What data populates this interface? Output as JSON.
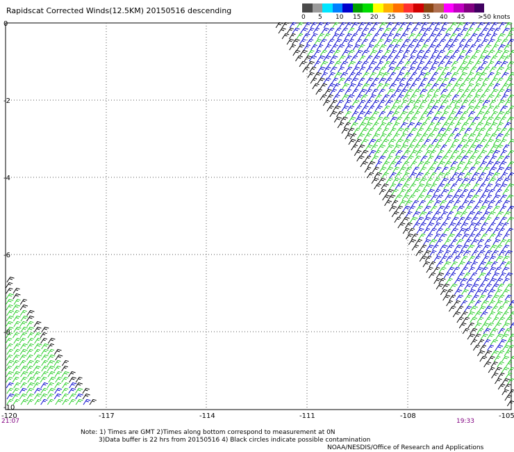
{
  "title": "Rapidscat Corrected Winds(12.5KM) 20150516 descending",
  "legend": {
    "colors": [
      "#4a4a4a",
      "#9a9a9a",
      "#00e5ff",
      "#0080ff",
      "#0000cc",
      "#00a000",
      "#00dd00",
      "#ffff00",
      "#ffb000",
      "#ff7000",
      "#ff3030",
      "#d00000",
      "#8b4513",
      "#b07050",
      "#ff00ff",
      "#c000c0",
      "#800080",
      "#400060"
    ],
    "labels": [
      "0",
      "5",
      "10",
      "15",
      "20",
      "25",
      "30",
      "35",
      "40",
      "45",
      ">50 knots"
    ]
  },
  "axes": {
    "x_ticks": [
      "-120",
      "-117",
      "-114",
      "-111",
      "-108",
      "-105"
    ],
    "y_ticks": [
      "0",
      "-2",
      "-4",
      "-6",
      "-8",
      "-10"
    ]
  },
  "timestamps": {
    "left": "21:07",
    "right": "19:33"
  },
  "notes": [
    "Note: 1) Times are GMT 2)Times along bottom correspond to measurement at 0N",
    "3)Data buffer is 22 hrs from 20150516 4) Black circles indicate possible contamination",
    "NOAA/NESDIS/Office of Research and Applications"
  ],
  "colors": {
    "blue": "#0000cd",
    "green": "#22cc22",
    "black": "#000000",
    "grid": "#555555"
  }
}
